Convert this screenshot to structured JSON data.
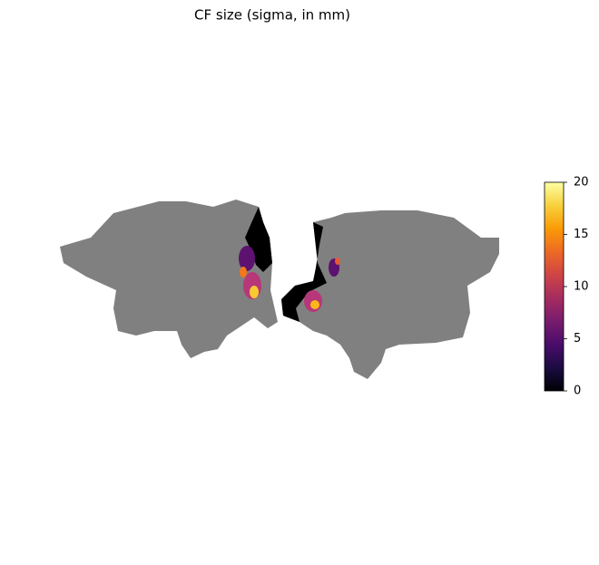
{
  "chart_data": {
    "type": "flatmap",
    "title": "CF size (sigma, in mm)",
    "colorbar": {
      "colormap": "inferno",
      "lim": [
        0,
        20
      ],
      "ticks": [
        0,
        5,
        10,
        15,
        20
      ]
    }
  }
}
